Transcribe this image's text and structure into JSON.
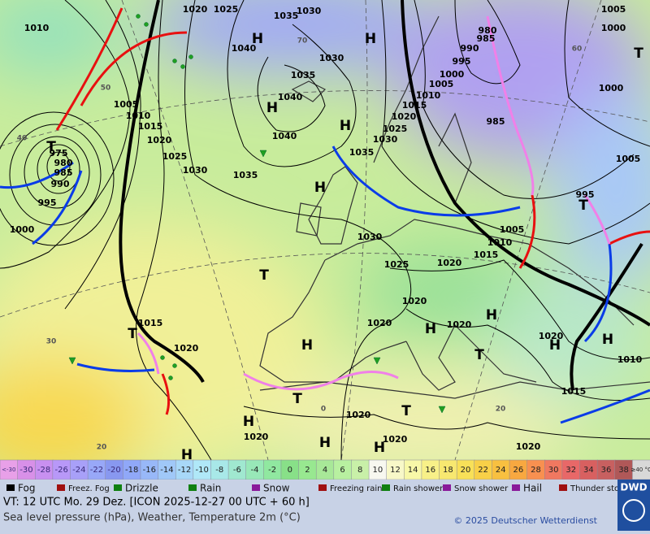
{
  "map": {
    "labels": [
      "1010",
      "1020",
      "1025",
      "1030",
      "1035",
      "1040",
      "1030",
      "1035",
      "1040",
      "1040",
      "1035",
      "1030",
      "1025",
      "1020",
      "1015",
      "1010",
      "1005",
      "975",
      "980",
      "985",
      "990",
      "995",
      "1000",
      "1035",
      "1030",
      "1025",
      "1020",
      "1015",
      "1010",
      "1005",
      "1000",
      "995",
      "990",
      "985",
      "980",
      "985",
      "1005",
      "1000",
      "1000",
      "1005",
      "995",
      "1005",
      "1010",
      "1015",
      "1020",
      "1025",
      "1030",
      "1020",
      "1020",
      "1020",
      "1020",
      "1010",
      "1015",
      "1015",
      "1020",
      "1020",
      "1020",
      "1020",
      "1020",
      "H",
      "H",
      "H",
      "H",
      "H",
      "H",
      "H",
      "H",
      "H",
      "H",
      "H",
      "H",
      "H",
      "H",
      "T",
      "T",
      "T",
      "T",
      "T",
      "T",
      "T",
      "T",
      "60",
      "70",
      "50",
      "40",
      "30",
      "20",
      "20",
      "0"
    ]
  },
  "scale": {
    "items": [
      {
        "label": "<-30",
        "color": "#e8a0e8"
      },
      {
        "label": -30,
        "color": "#d890e8"
      },
      {
        "label": -28,
        "color": "#c890f0"
      },
      {
        "label": -26,
        "color": "#b898f8"
      },
      {
        "label": -24,
        "color": "#a8a0f8"
      },
      {
        "label": -22,
        "color": "#98a8f8"
      },
      {
        "label": -20,
        "color": "#8898f0"
      },
      {
        "label": -18,
        "color": "#90a8f8"
      },
      {
        "label": -16,
        "color": "#98b8f8"
      },
      {
        "label": -14,
        "color": "#a0c8f8"
      },
      {
        "label": -12,
        "color": "#a8d8f8"
      },
      {
        "label": -10,
        "color": "#b0e8f8"
      },
      {
        "label": -8,
        "color": "#a8e8e8"
      },
      {
        "label": -6,
        "color": "#a0e8d0"
      },
      {
        "label": -4,
        "color": "#98e8b8"
      },
      {
        "label": -2,
        "color": "#90e8a0"
      },
      {
        "label": 0,
        "color": "#88e088"
      },
      {
        "label": 2,
        "color": "#98e890"
      },
      {
        "label": 4,
        "color": "#a8e898"
      },
      {
        "label": 6,
        "color": "#b8f0a0"
      },
      {
        "label": 8,
        "color": "#c8f0a8"
      },
      {
        "label": 10,
        "color": "#f8f8f0"
      },
      {
        "label": 12,
        "color": "#f8f8c8"
      },
      {
        "label": 14,
        "color": "#f8f8a8"
      },
      {
        "label": 16,
        "color": "#f8f088"
      },
      {
        "label": 18,
        "color": "#f8e870"
      },
      {
        "label": 20,
        "color": "#f8e058"
      },
      {
        "label": 22,
        "color": "#f8d048"
      },
      {
        "label": 24,
        "color": "#f8c040"
      },
      {
        "label": 26,
        "color": "#f8a840"
      },
      {
        "label": 28,
        "color": "#f89050"
      },
      {
        "label": 30,
        "color": "#f07860"
      },
      {
        "label": 32,
        "color": "#e86868"
      },
      {
        "label": 34,
        "color": "#d86060"
      },
      {
        "label": 36,
        "color": "#c86060"
      },
      {
        "label": 38,
        "color": "#b05858"
      },
      {
        "label": "≥40 °C",
        "color": "#d8d8d8"
      }
    ]
  },
  "weather_legend": [
    "Fog",
    "Freez. Fog",
    "Drizzle",
    "Rain",
    "Snow",
    "Freezing rain",
    "Rain shower",
    "Snow shower",
    "Hail",
    "Thunder storm"
  ],
  "footer": {
    "valid_time": "VT: 12 UTC Mo.  29 Dez. [ICON 2025-12-27  00 UTC + 60 h]",
    "description": "Sea level pressure (hPa), Weather, Temperature 2m (°C)",
    "copyright": "© 2025 Deutscher Wetterdienst",
    "logo": "DWD"
  }
}
